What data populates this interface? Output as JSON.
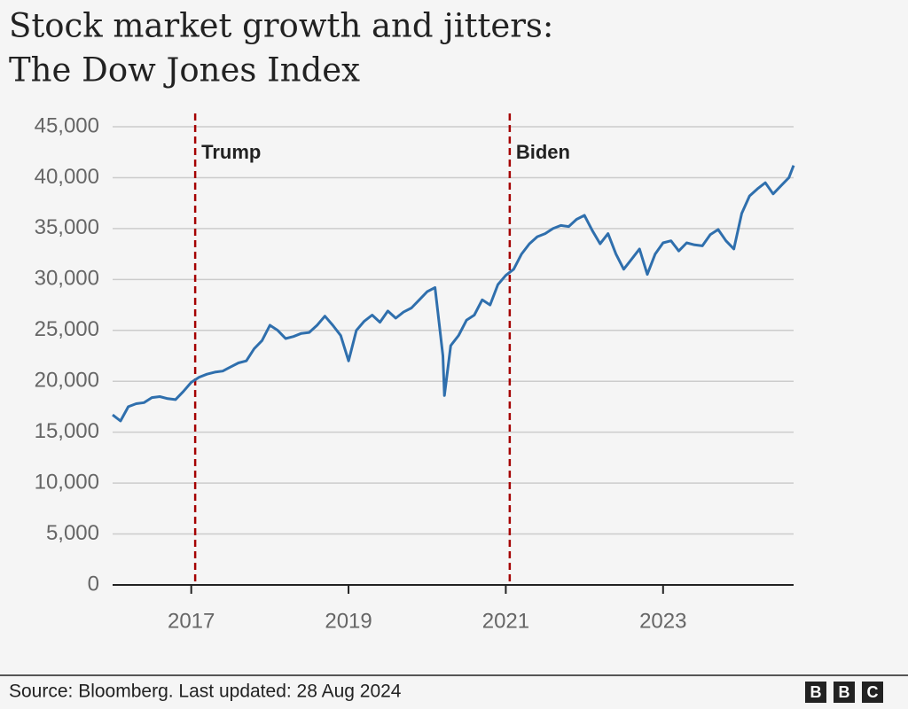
{
  "chart_data": {
    "type": "line",
    "title": [
      "Stock market growth and jitters:",
      "The Dow Jones Index"
    ],
    "x": [
      2016.0,
      2016.1,
      2016.2,
      2016.3,
      2016.4,
      2016.5,
      2016.6,
      2016.7,
      2016.8,
      2016.9,
      2017.0,
      2017.1,
      2017.2,
      2017.3,
      2017.4,
      2017.5,
      2017.6,
      2017.7,
      2017.8,
      2017.9,
      2018.0,
      2018.1,
      2018.2,
      2018.3,
      2018.4,
      2018.5,
      2018.6,
      2018.7,
      2018.8,
      2018.9,
      2019.0,
      2019.1,
      2019.2,
      2019.3,
      2019.4,
      2019.5,
      2019.6,
      2019.7,
      2019.8,
      2019.9,
      2020.0,
      2020.1,
      2020.2,
      2020.22,
      2020.3,
      2020.4,
      2020.5,
      2020.6,
      2020.7,
      2020.8,
      2020.9,
      2021.0,
      2021.1,
      2021.2,
      2021.3,
      2021.4,
      2021.5,
      2021.6,
      2021.7,
      2021.8,
      2021.9,
      2022.0,
      2022.1,
      2022.2,
      2022.3,
      2022.4,
      2022.5,
      2022.6,
      2022.7,
      2022.8,
      2022.9,
      2023.0,
      2023.1,
      2023.2,
      2023.3,
      2023.4,
      2023.5,
      2023.6,
      2023.7,
      2023.8,
      2023.9,
      2024.0,
      2024.1,
      2024.2,
      2024.3,
      2024.4,
      2024.5,
      2024.6,
      2024.66
    ],
    "values": [
      16700,
      16100,
      17500,
      17800,
      17900,
      18400,
      18500,
      18300,
      18200,
      19000,
      19900,
      20400,
      20700,
      20900,
      21000,
      21400,
      21800,
      22000,
      23200,
      24000,
      25500,
      25000,
      24200,
      24400,
      24700,
      24800,
      25500,
      26400,
      25500,
      24500,
      22000,
      25000,
      25900,
      26500,
      25800,
      26900,
      26200,
      26800,
      27200,
      28000,
      28800,
      29200,
      22500,
      18600,
      23500,
      24500,
      26000,
      26500,
      28000,
      27500,
      29500,
      30400,
      31000,
      32500,
      33500,
      34200,
      34500,
      35000,
      35300,
      35200,
      35900,
      36300,
      34800,
      33500,
      34500,
      32500,
      31000,
      32000,
      33000,
      30500,
      32500,
      33600,
      33800,
      32800,
      33600,
      33400,
      33300,
      34400,
      34900,
      33800,
      33000,
      36500,
      38200,
      38900,
      39500,
      38400,
      39200,
      40000,
      41200
    ],
    "color": "#2f6fad",
    "xlim": [
      2016.0,
      2024.66
    ],
    "xticks": [
      2017,
      2019,
      2021,
      2023
    ],
    "ylim": [
      0,
      45000
    ],
    "yticks": [
      0,
      {
        "value": 5000,
        "label": "5,000"
      },
      {
        "value": 10000,
        "label": "10,000"
      },
      {
        "value": 15000,
        "label": "15,000"
      },
      {
        "value": 20000,
        "label": "20,000"
      },
      {
        "value": 25000,
        "label": "25,000"
      },
      {
        "value": 30000,
        "label": "30,000"
      },
      {
        "value": 35000,
        "label": "35,000"
      },
      {
        "value": 40000,
        "label": "40,000"
      },
      {
        "value": 45000,
        "label": "45,000"
      }
    ],
    "grid": true,
    "annotations": [
      {
        "text": "Trump",
        "x": 2017.05
      },
      {
        "text": "Biden",
        "x": 2021.05
      }
    ],
    "source": "Source: Bloomberg. Last updated: 28 Aug 2024",
    "logo": "BBC"
  }
}
